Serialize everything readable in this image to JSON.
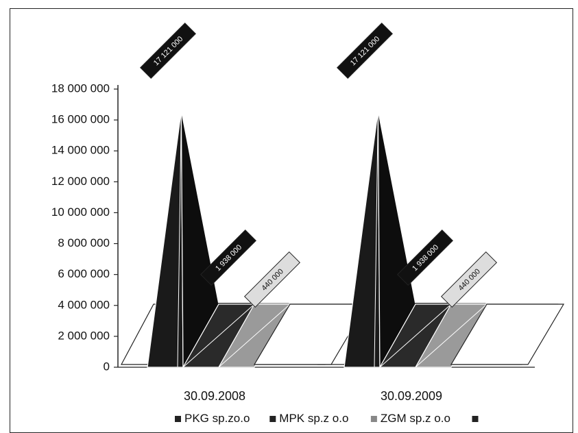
{
  "chart_data": {
    "type": "bar",
    "shape": "3d-pyramid",
    "categories": [
      "30.09.2008",
      "30.09.2009"
    ],
    "series": [
      {
        "name": "PKG sp.zo.o",
        "values": [
          17121000,
          17121000
        ],
        "labels": [
          "17 121 000",
          "17 121 000"
        ],
        "color": "#1a1a1a"
      },
      {
        "name": "MPK sp.z o.o",
        "values": [
          1938000,
          1938000
        ],
        "labels": [
          "1 938 000",
          "1 938 000"
        ],
        "color": "#2a2a2a"
      },
      {
        "name": "ZGM sp.z o.o",
        "values": [
          440000,
          440000
        ],
        "labels": [
          "440 000",
          "440 000"
        ],
        "color": "#9a9a9a"
      },
      {
        "name": "",
        "values": [
          0,
          0
        ],
        "labels": [
          "",
          ""
        ],
        "color": "#ffffff"
      }
    ],
    "yticks": [
      "18 000 000",
      "16 000 000",
      "14 000 000",
      "12 000 000",
      "10 000 000",
      "8 000 000",
      "6 000 000",
      "4 000 000",
      "2 000 000",
      "0"
    ],
    "ylim": [
      0,
      18000000
    ],
    "legend_position": "bottom",
    "grid": false
  }
}
